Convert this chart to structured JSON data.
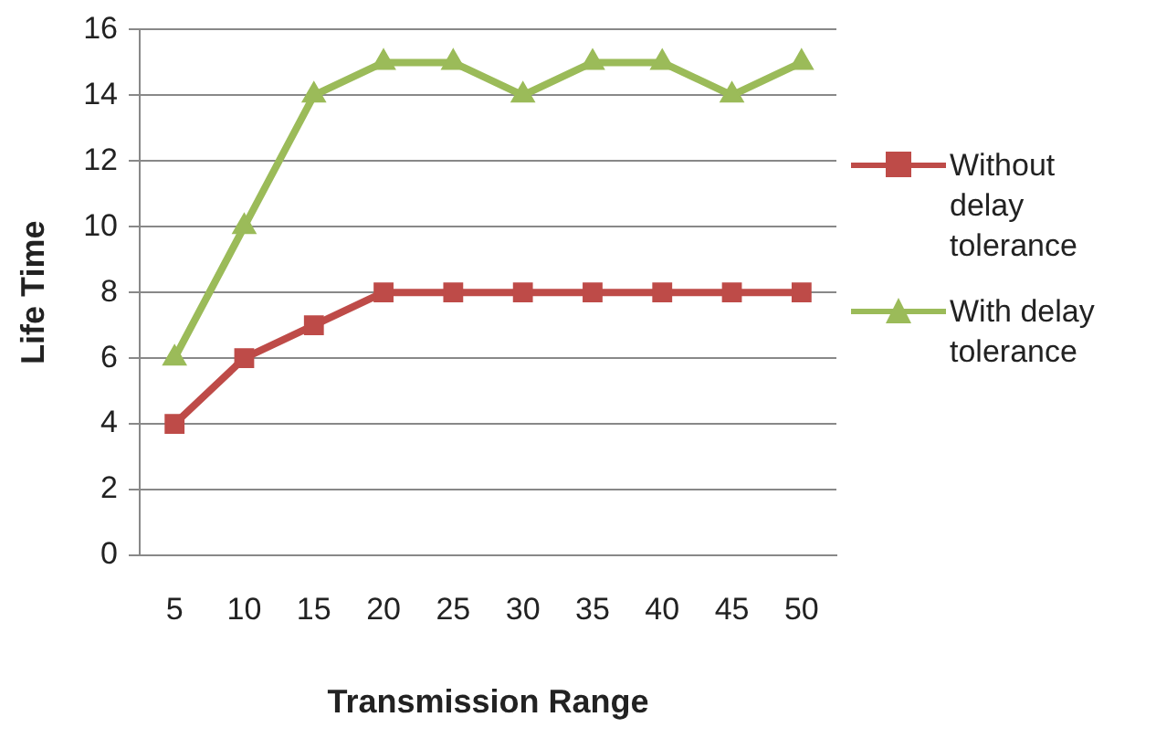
{
  "chart_data": {
    "type": "line",
    "xlabel": "Transmission Range",
    "ylabel": "Life Time",
    "categories": [
      "5",
      "10",
      "15",
      "20",
      "25",
      "30",
      "35",
      "40",
      "45",
      "50"
    ],
    "series": [
      {
        "name": "Without delay tolerance",
        "color": "#be4b48",
        "marker": "square",
        "values": [
          4,
          6,
          7,
          8,
          8,
          8,
          8,
          8,
          8,
          8
        ]
      },
      {
        "name": "With delay tolerance",
        "color": "#9bbb59",
        "marker": "triangle",
        "values": [
          6,
          10,
          14,
          15,
          15,
          14,
          15,
          15,
          14,
          15
        ]
      }
    ],
    "ylim": [
      0,
      16
    ],
    "yticks": [
      0,
      2,
      4,
      6,
      8,
      10,
      12,
      14,
      16
    ],
    "grid": "y",
    "legend": "right",
    "line_style": "solid"
  }
}
